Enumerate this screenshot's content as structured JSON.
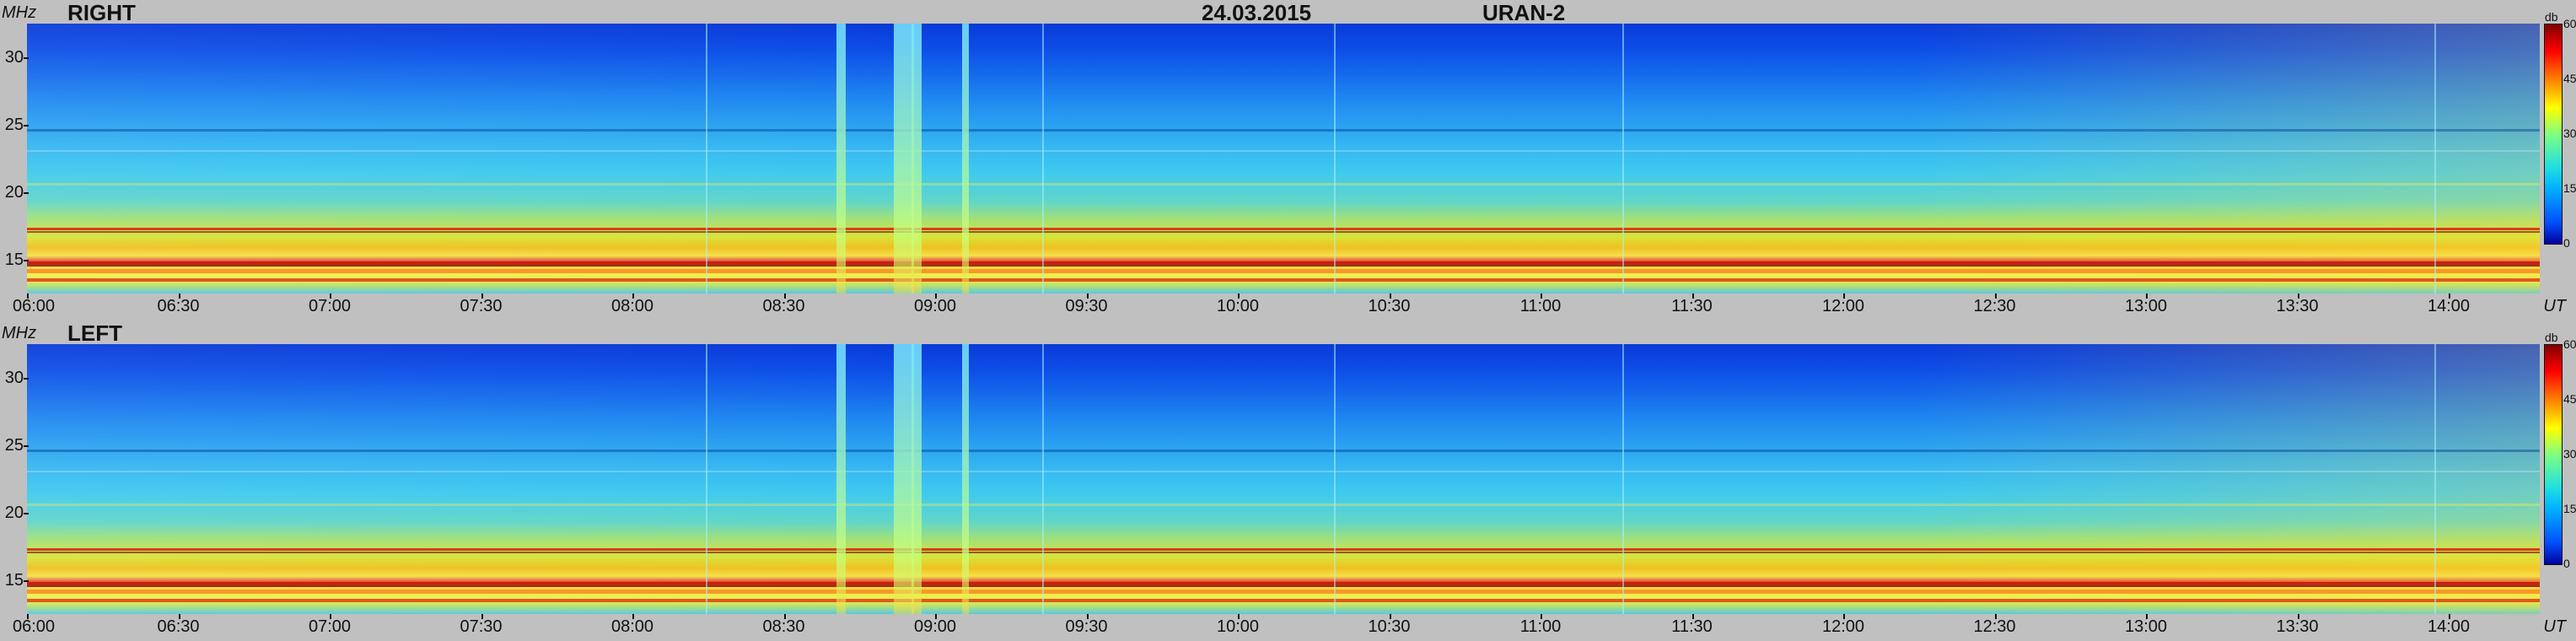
{
  "header": {
    "date": "24.03.2015",
    "station": "URAN-2"
  },
  "chart_data": [
    {
      "type": "heatmap",
      "title": "RIGHT",
      "ylabel": "MHz",
      "xlabel": "UT",
      "x_ticks": [
        "06:00",
        "06:30",
        "07:00",
        "07:30",
        "08:00",
        "08:30",
        "09:00",
        "09:30",
        "10:00",
        "10:30",
        "11:00",
        "11:30",
        "12:00",
        "12:30",
        "13:00",
        "13:30",
        "14:00"
      ],
      "y_ticks": [
        "15",
        "20",
        "25",
        "30"
      ],
      "y_tick_values": [
        15,
        20,
        25,
        30
      ],
      "ylim": [
        12.5,
        32.5
      ],
      "colorbar": {
        "unit": "db",
        "ticks": [
          "0",
          "15",
          "30",
          "45",
          "60"
        ],
        "range": [
          0,
          60
        ]
      }
    },
    {
      "type": "heatmap",
      "title": "LEFT",
      "ylabel": "MHz",
      "xlabel": "UT",
      "x_ticks": [
        "06:00",
        "06:30",
        "07:00",
        "07:30",
        "08:00",
        "08:30",
        "09:00",
        "09:30",
        "10:00",
        "10:30",
        "11:00",
        "11:30",
        "12:00",
        "12:30",
        "13:00",
        "13:30",
        "14:00"
      ],
      "y_ticks": [
        "15",
        "20",
        "25",
        "30"
      ],
      "y_tick_values": [
        15,
        20,
        25,
        30
      ],
      "ylim": [
        12.5,
        32.5
      ],
      "colorbar": {
        "unit": "db",
        "ticks": [
          "0",
          "15",
          "30",
          "45",
          "60"
        ],
        "range": [
          0,
          60
        ]
      }
    }
  ]
}
